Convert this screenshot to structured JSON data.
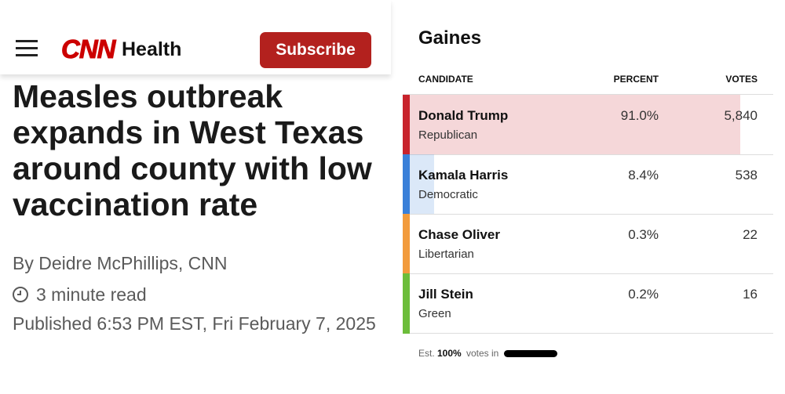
{
  "article": {
    "logo": "CNN",
    "section": "Health",
    "subscribe": "Subscribe",
    "title": "Measles outbreak expands in West Texas around county with low vaccination rate",
    "byline": "By Deidre McPhillips, CNN",
    "read_time": "3 minute read",
    "published": "Published 6:53 PM EST, Fri February 7, 2025"
  },
  "results": {
    "county": "Gaines",
    "columns": [
      "CANDIDATE",
      "PERCENT",
      "VOTES"
    ],
    "candidates": [
      {
        "name": "Donald Trump",
        "party": "Republican",
        "percent": {
          "value": 91.0,
          "label": "91.0%"
        },
        "votes": "5,840",
        "color": "#c8232c"
      },
      {
        "name": "Kamala Harris",
        "party": "Democratic",
        "percent": {
          "value": 8.4,
          "label": "8.4%"
        },
        "votes": "538",
        "color": "#3a80d9"
      },
      {
        "name": "Chase Oliver",
        "party": "Libertarian",
        "percent": {
          "value": 0.3,
          "label": "0.3%"
        },
        "votes": "22",
        "color": "#f29b3c"
      },
      {
        "name": "Jill Stein",
        "party": "Green",
        "percent": {
          "value": 0.2,
          "label": "0.2%"
        },
        "votes": "16",
        "color": "#6cbd3a"
      }
    ],
    "footer": {
      "est": "Est.",
      "reported": "100%",
      "votes_in": "votes in"
    }
  }
}
